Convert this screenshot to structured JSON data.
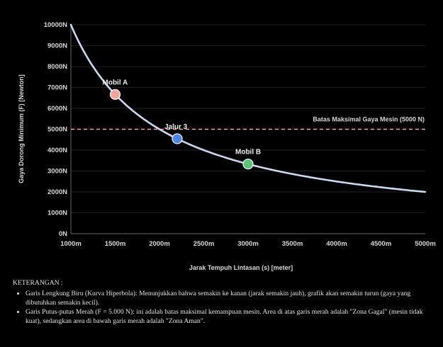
{
  "chart_data": {
    "type": "line",
    "xlabel": "Jarak Tempuh Lintasan (s) [meter]",
    "ylabel": "Gaya Dorong Minimum (F) [Newton]",
    "xlim": [
      1000,
      5000
    ],
    "ylim": [
      0,
      10000
    ],
    "x_ticks": [
      "1000m",
      "1500m",
      "2000m",
      "2500m",
      "3000m",
      "3500m",
      "4000m",
      "4500m",
      "5000m"
    ],
    "y_ticks": [
      "0N",
      "1000N",
      "2000N",
      "3000N",
      "4000N",
      "5000N",
      "6000N",
      "7000N",
      "8000N",
      "9000N",
      "10000N"
    ],
    "curve": {
      "formula": "F = 10000000 / s",
      "x": [
        1000,
        1200,
        1400,
        1500,
        1600,
        1800,
        2000,
        2200,
        2500,
        2800,
        3000,
        3300,
        3600,
        4000,
        4400,
        4800,
        5000
      ],
      "y": [
        10000,
        8333,
        7143,
        6667,
        6250,
        5556,
        5000,
        4545,
        4000,
        3571,
        3333,
        3030,
        2778,
        2500,
        2273,
        2083,
        2000
      ],
      "color": "#c9d8f0"
    },
    "threshold": {
      "value": 5000,
      "label": "Batas Maksimal Gaya Mesin (5000 N)",
      "color": "#e8a9a0"
    },
    "points": [
      {
        "name": "Mobil A",
        "x": 1500,
        "y": 6667,
        "color": "#f2a59a"
      },
      {
        "name": "Jalur 3",
        "x": 2200,
        "y": 4545,
        "color": "#4a86e8"
      },
      {
        "name": "Mobil B",
        "x": 3000,
        "y": 3333,
        "color": "#57c47a"
      }
    ]
  },
  "legend": {
    "heading": "KETERANGAN :",
    "items": [
      "Garis Lengkung Biru (Kurva Hiperbola): Menunjukkan bahwa semakin ke kanan (jarak semakin jauh), grafik akan semakin turun (gaya yang dibutuhkan semakin kecil).",
      "Garis Putus-putus Merah (F = 5.000 N): ini adalah batas maksimal kemampuan mesin. Area di atas garis merah adalah \"Zona Gagal\" (mesin tidak kuat), sedangkan area di bawah garis merah adalah \"Zona Aman\"."
    ]
  }
}
